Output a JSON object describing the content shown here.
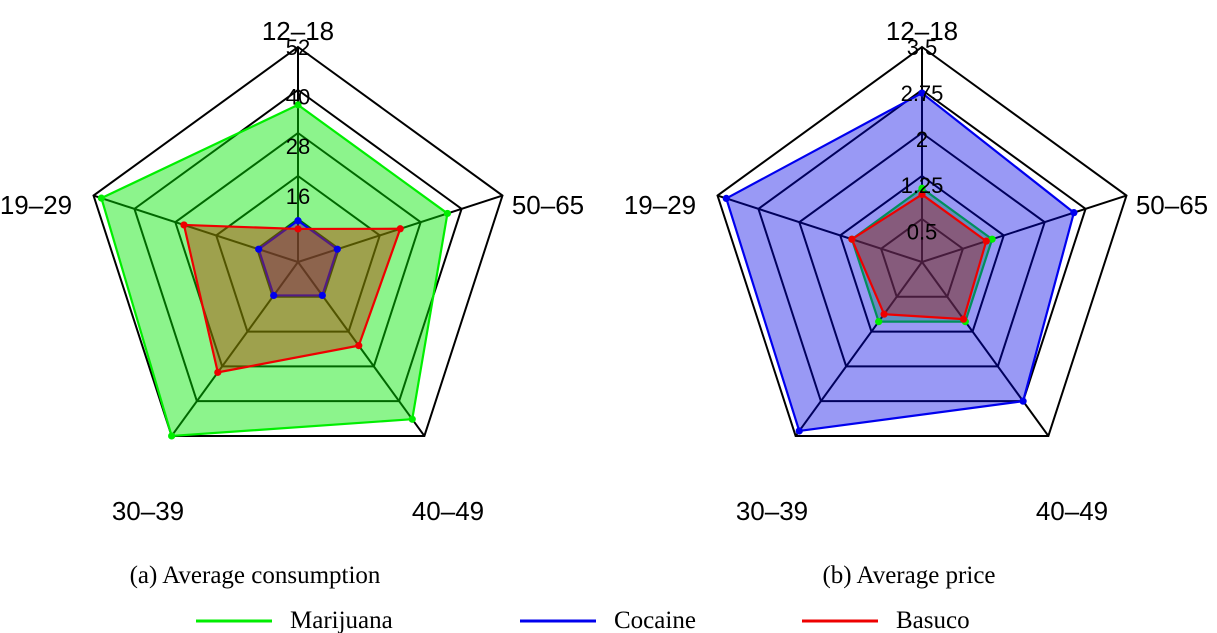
{
  "chart_data": [
    {
      "type": "radar",
      "caption": "(a) Average consumption",
      "axes": [
        "12–18",
        "50–65",
        "40–49",
        "30–39",
        "19–29"
      ],
      "ticks": [
        "16",
        "28",
        "40",
        "52"
      ],
      "range": [
        0,
        52
      ],
      "series": [
        {
          "name": "Marijuana",
          "color": "#00ee00",
          "fill": "rgba(0,230,0,0.45)",
          "values": [
            38,
            38,
            47,
            52,
            50
          ]
        },
        {
          "name": "Cocaine",
          "color": "#0000ee",
          "fill": "rgba(70,0,140,0.45)",
          "values": [
            10,
            10,
            10,
            10,
            10
          ]
        },
        {
          "name": "Basuco",
          "color": "#ee0000",
          "fill": "rgba(180,60,0,0.45)",
          "values": [
            8,
            26,
            25,
            33,
            29
          ]
        }
      ]
    },
    {
      "type": "radar",
      "caption": "(b) Average price",
      "axes": [
        "12–18",
        "50–65",
        "40–49",
        "30–39",
        "19–29"
      ],
      "ticks": [
        "0.5",
        "1.25",
        "2",
        "2.75",
        "3.5"
      ],
      "range": [
        0,
        3.5
      ],
      "series": [
        {
          "name": "Marijuana",
          "color": "#00ee00",
          "fill": "rgba(0,200,0,0.35)",
          "values": [
            1.2,
            1.2,
            1.2,
            1.2,
            1.2
          ]
        },
        {
          "name": "Cocaine",
          "color": "#0000ee",
          "fill": "rgba(0,0,230,0.4)",
          "values": [
            2.75,
            2.6,
            2.8,
            3.4,
            3.35
          ]
        },
        {
          "name": "Basuco",
          "color": "#ee0000",
          "fill": "rgba(200,0,0,0.35)",
          "values": [
            1.1,
            1.1,
            1.15,
            1.05,
            1.2
          ]
        }
      ]
    }
  ],
  "legend": [
    {
      "label": "Marijuana",
      "color": "#00ee00"
    },
    {
      "label": "Cocaine",
      "color": "#0000ee"
    },
    {
      "label": "Basuco",
      "color": "#ee0000"
    }
  ]
}
